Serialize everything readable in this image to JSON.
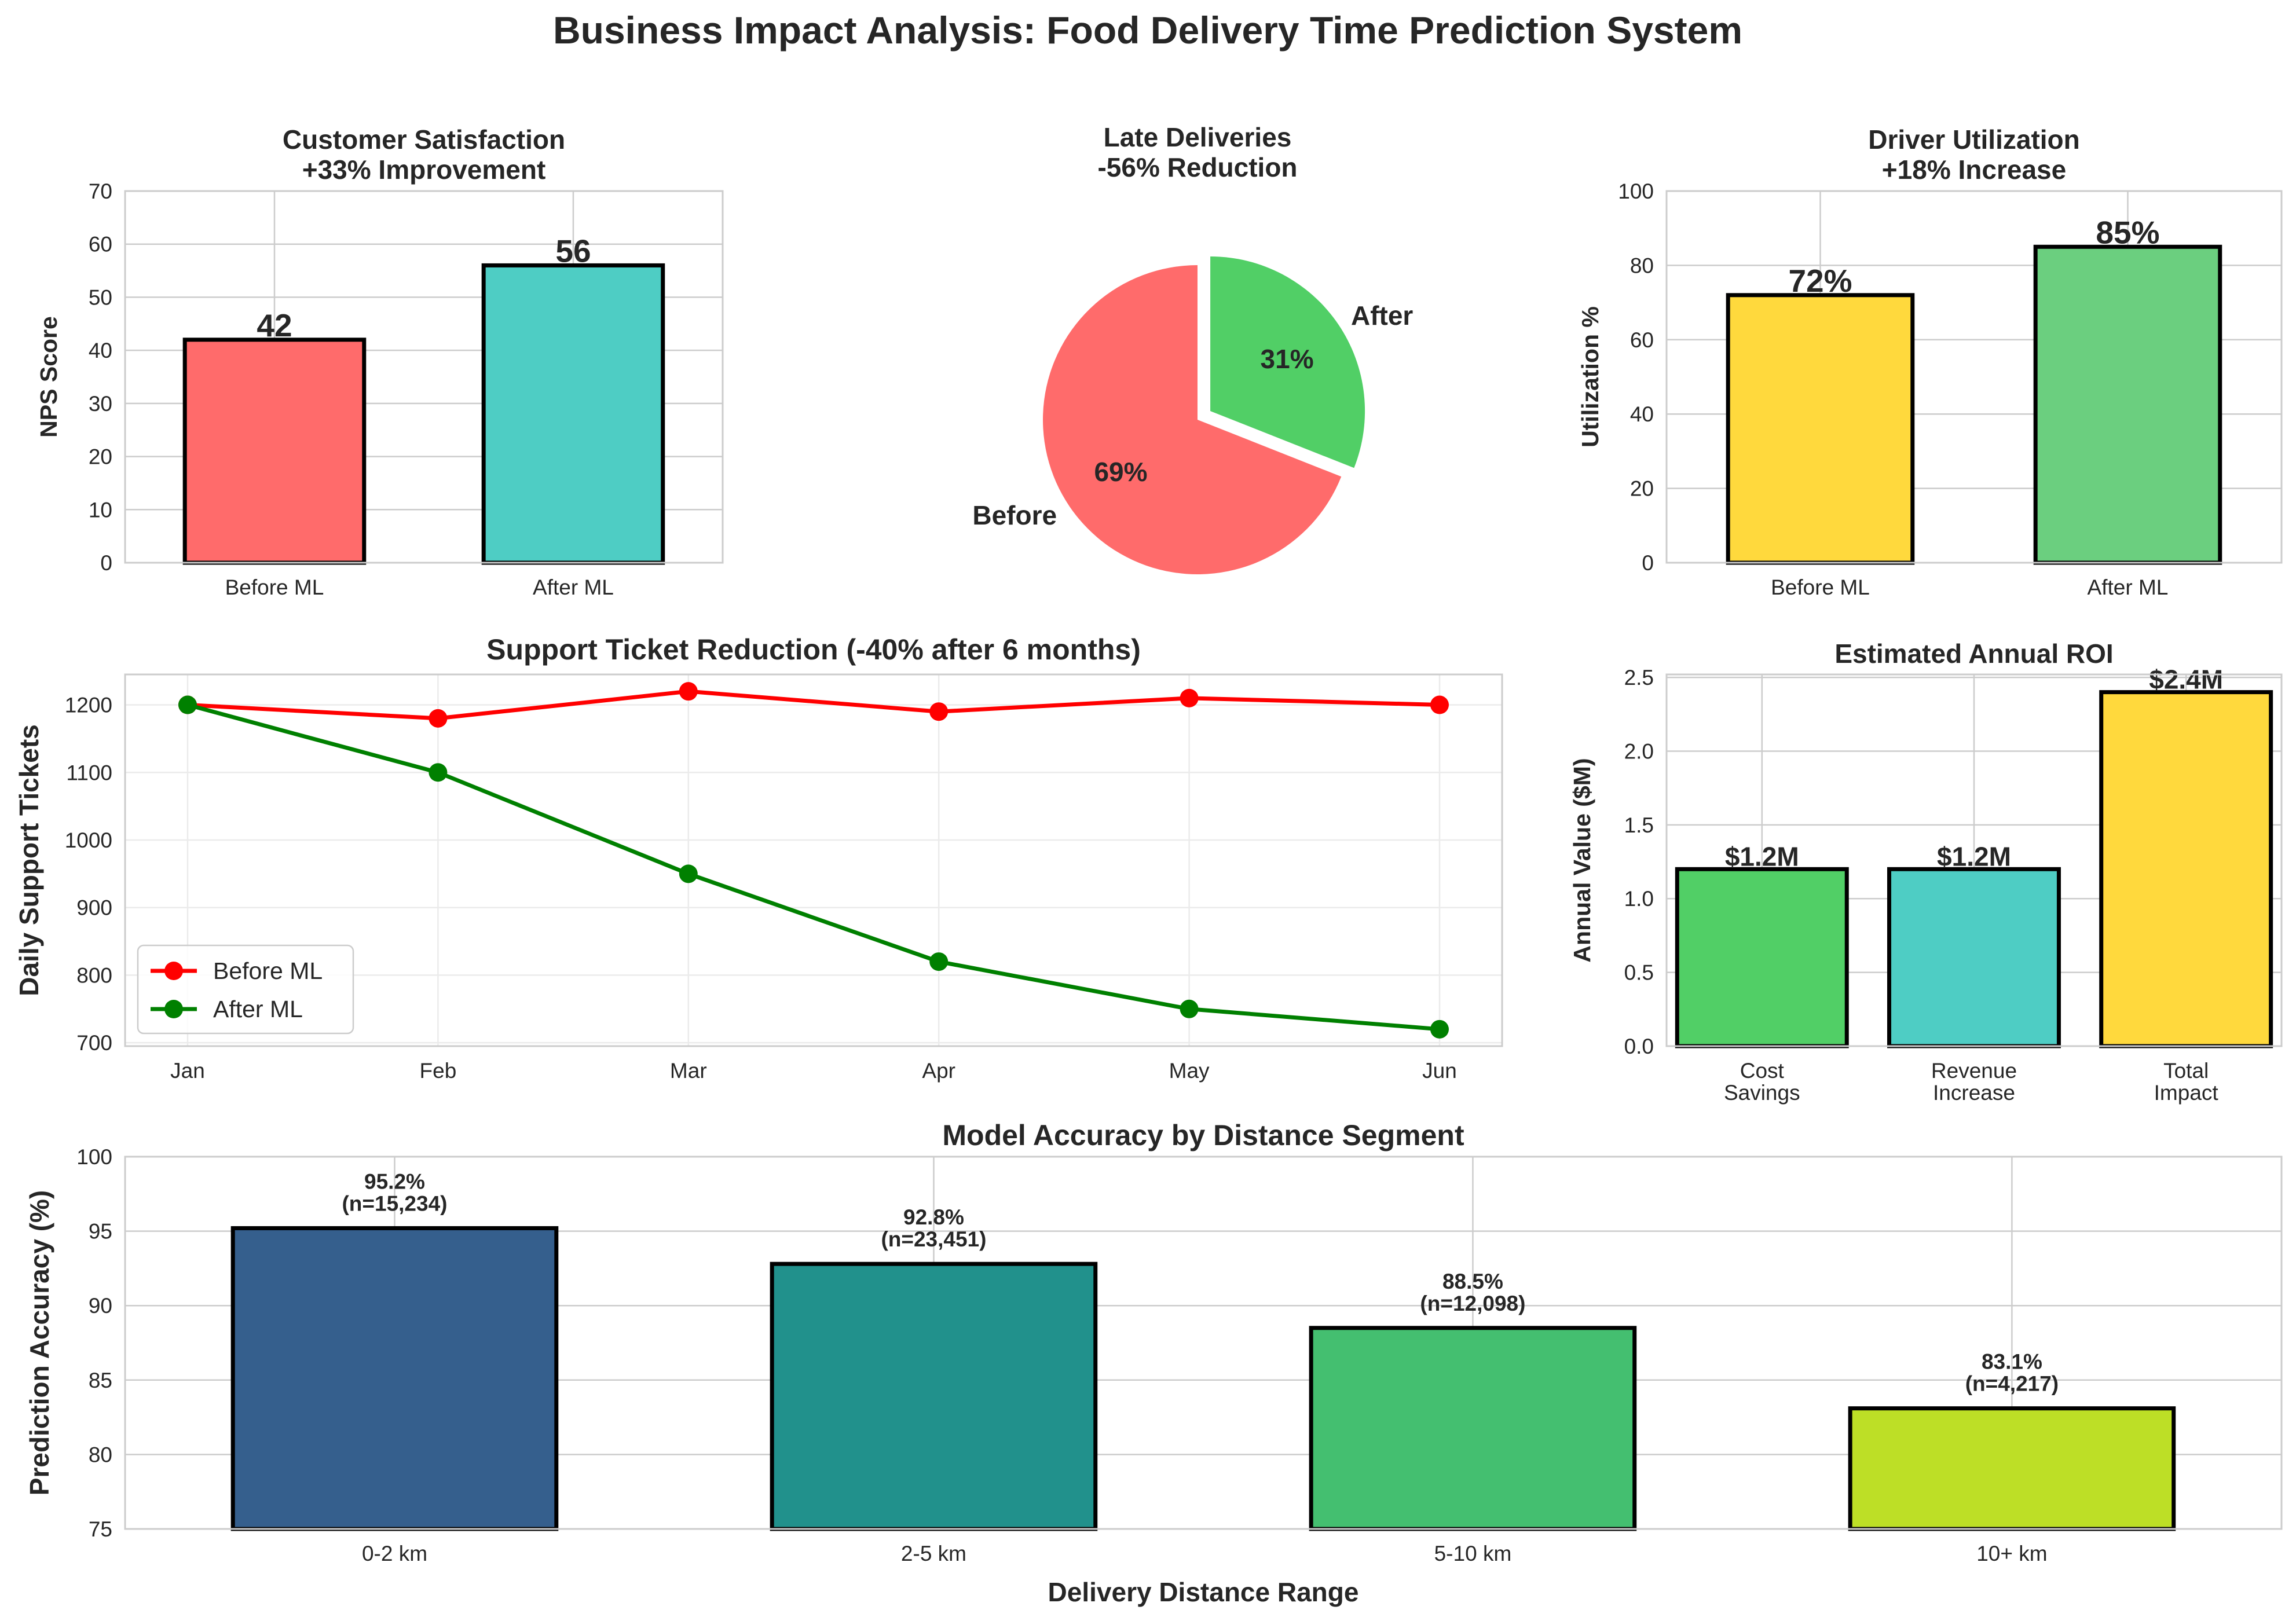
{
  "suptitle": "Business Impact Analysis: Food Delivery Time Prediction System",
  "chart_data": [
    {
      "id": "nps",
      "type": "bar",
      "title": [
        "Customer Satisfaction",
        "+33% Improvement"
      ],
      "categories": [
        "Before ML",
        "After ML"
      ],
      "values": [
        42,
        56
      ],
      "value_labels": [
        "42",
        "56"
      ],
      "colors": [
        "#ff6b6b",
        "#4ecdc4"
      ],
      "xlabel": "",
      "ylabel": "NPS Score",
      "ylim": [
        0,
        70
      ],
      "yticks": [
        0,
        10,
        20,
        30,
        40,
        50,
        60,
        70
      ],
      "grid": true
    },
    {
      "id": "late",
      "type": "pie",
      "title": [
        "Late Deliveries",
        "-56% Reduction"
      ],
      "labels": [
        "Before",
        "After"
      ],
      "values": [
        69,
        31
      ],
      "pct_labels": [
        "69%",
        "31%"
      ],
      "colors": [
        "#ff6b6b",
        "#51cf66"
      ],
      "explode": [
        0,
        0.1
      ]
    },
    {
      "id": "util",
      "type": "bar",
      "title": [
        "Driver Utilization",
        "+18% Increase"
      ],
      "categories": [
        "Before ML",
        "After ML"
      ],
      "values": [
        72,
        85
      ],
      "value_labels": [
        "72%",
        "85%"
      ],
      "colors": [
        "#ffd93d",
        "#6bcf7f"
      ],
      "xlabel": "",
      "ylabel": "Utilization %",
      "ylim": [
        0,
        100
      ],
      "yticks": [
        0,
        20,
        40,
        60,
        80,
        100
      ],
      "grid": true
    },
    {
      "id": "tickets",
      "type": "line",
      "title": [
        "Support Ticket Reduction (-40% after 6 months)"
      ],
      "categories": [
        "Jan",
        "Feb",
        "Mar",
        "Apr",
        "May",
        "Jun"
      ],
      "series": [
        {
          "name": "Before ML",
          "values": [
            1200,
            1180,
            1220,
            1190,
            1210,
            1200
          ],
          "color": "#ff0000"
        },
        {
          "name": "After ML",
          "values": [
            1200,
            1100,
            950,
            820,
            750,
            720
          ],
          "color": "#008000"
        }
      ],
      "xlabel": "",
      "ylabel": "Daily Support Tickets",
      "ylim": [
        695,
        1245
      ],
      "yticks": [
        700,
        800,
        900,
        1000,
        1100,
        1200
      ],
      "legend": "lower-left",
      "grid": true
    },
    {
      "id": "roi",
      "type": "bar",
      "title": [
        "Estimated Annual ROI"
      ],
      "categories": [
        [
          "Cost",
          "Savings"
        ],
        [
          "Revenue",
          "Increase"
        ],
        [
          "Total",
          "Impact"
        ]
      ],
      "values": [
        1.2,
        1.2,
        2.4
      ],
      "value_labels": [
        "$1.2M",
        "$1.2M",
        "$2.4M"
      ],
      "colors": [
        "#51cf66",
        "#4ecdc4",
        "#ffd93d"
      ],
      "xlabel": "",
      "ylabel": "Annual Value ($M)",
      "ylim": [
        0,
        2.52
      ],
      "yticks": [
        0.0,
        0.5,
        1.0,
        1.5,
        2.0,
        2.5
      ],
      "ytick_labels": [
        "0.0",
        "0.5",
        "1.0",
        "1.5",
        "2.0",
        "2.5"
      ],
      "grid": true
    },
    {
      "id": "accuracy",
      "type": "bar",
      "title": [
        "Model Accuracy by Distance Segment"
      ],
      "categories": [
        "0-2 km",
        "2-5 km",
        "5-10 km",
        "10+ km"
      ],
      "values": [
        95.2,
        92.8,
        88.5,
        83.1
      ],
      "value_labels": [
        [
          "95.2%",
          "(n=15,234)"
        ],
        [
          "92.8%",
          "(n=23,451)"
        ],
        [
          "88.5%",
          "(n=12,098)"
        ],
        [
          "83.1%",
          "(n=4,217)"
        ]
      ],
      "colors": [
        "#355f8d",
        "#21918c",
        "#44bf70",
        "#bddf26"
      ],
      "xlabel": "Delivery Distance Range",
      "ylabel": "Prediction Accuracy (%)",
      "ylim": [
        75,
        100
      ],
      "yticks": [
        75,
        80,
        85,
        90,
        95,
        100
      ],
      "grid": true
    }
  ]
}
